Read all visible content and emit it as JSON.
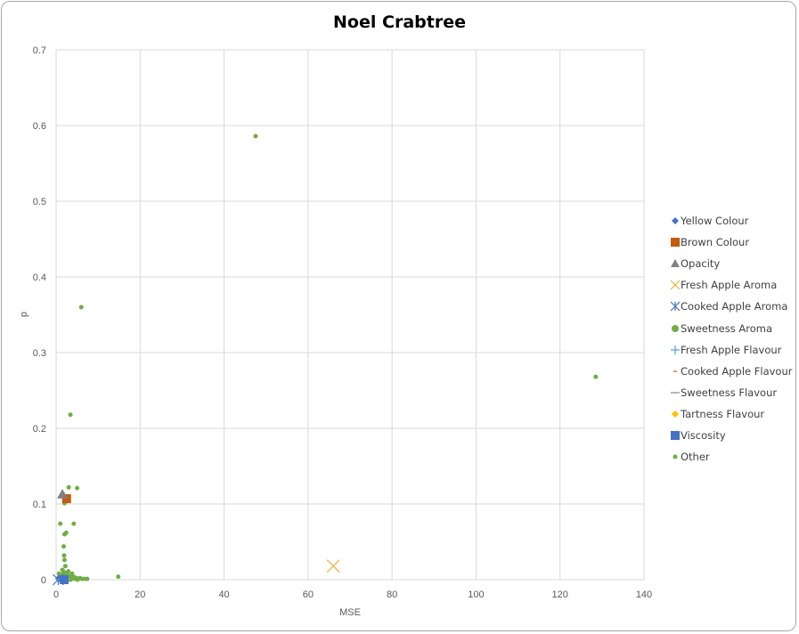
{
  "chart_data": {
    "type": "scatter",
    "title": "Noel Crabtree",
    "xlabel": "MSE",
    "ylabel": "p",
    "xlim": [
      0,
      140
    ],
    "ylim": [
      0,
      0.7
    ],
    "x_ticks": [
      "0",
      "20",
      "40",
      "60",
      "80",
      "100",
      "120",
      "140"
    ],
    "y_ticks": [
      "0",
      "0.1",
      "0.2",
      "0.3",
      "0.4",
      "0.5",
      "0.6",
      "0.7"
    ],
    "grid": true,
    "legend_position": "right",
    "series": [
      {
        "name": "Yellow Colour",
        "color": "#4472c4",
        "marker": "diamond",
        "points": [
          [
            0.6,
            0.001
          ]
        ]
      },
      {
        "name": "Brown Colour",
        "color": "#c55a11",
        "marker": "square",
        "points": [
          [
            2.5,
            0.107
          ]
        ]
      },
      {
        "name": "Opacity",
        "color": "#808080",
        "marker": "triangle",
        "points": [
          [
            1.5,
            0.113
          ]
        ]
      },
      {
        "name": "Fresh Apple Aroma",
        "color": "#e6b43c",
        "marker": "x",
        "points": [
          [
            66,
            0.018
          ]
        ]
      },
      {
        "name": "Cooked Apple Aroma",
        "color": "#4472c4",
        "marker": "asterisk",
        "points": [
          [
            0.5,
            0.0
          ]
        ]
      },
      {
        "name": "Sweetness Aroma",
        "color": "#70ad47",
        "marker": "circle",
        "points": [
          [
            1.8,
            0.001
          ]
        ]
      },
      {
        "name": "Fresh Apple Flavour",
        "color": "#5b9bd5",
        "marker": "plus",
        "points": [
          [
            1.2,
            0.0
          ]
        ]
      },
      {
        "name": "Cooked Apple Flavour",
        "color": "#ed7d31",
        "marker": "dash",
        "points": [
          [
            2.0,
            0.001
          ]
        ]
      },
      {
        "name": "Sweetness Flavour",
        "color": "#a5a5a5",
        "marker": "line",
        "points": [
          [
            2.3,
            0.001
          ]
        ]
      },
      {
        "name": "Tartness Flavour",
        "color": "#ffc000",
        "marker": "diamond",
        "points": [
          [
            1.6,
            0.001
          ]
        ]
      },
      {
        "name": "Viscosity",
        "color": "#4472c4",
        "marker": "square",
        "points": [
          [
            1.9,
            0.0
          ]
        ]
      },
      {
        "name": "Other",
        "color": "#70ad47",
        "marker": "dot",
        "points": [
          [
            47.5,
            0.586
          ],
          [
            128.5,
            0.268
          ],
          [
            6.0,
            0.36
          ],
          [
            3.4,
            0.218
          ],
          [
            3.0,
            0.122
          ],
          [
            5.0,
            0.121
          ],
          [
            2.0,
            0.101
          ],
          [
            1.0,
            0.074
          ],
          [
            4.2,
            0.074
          ],
          [
            2.4,
            0.062
          ],
          [
            2.0,
            0.06
          ],
          [
            1.8,
            0.044
          ],
          [
            1.9,
            0.032
          ],
          [
            2.0,
            0.026
          ],
          [
            2.2,
            0.018
          ],
          [
            1.5,
            0.013
          ],
          [
            1.8,
            0.01
          ],
          [
            14.8,
            0.004
          ],
          [
            0.5,
            0.002
          ],
          [
            0.9,
            0.003
          ],
          [
            1.2,
            0.002
          ],
          [
            1.6,
            0.006
          ],
          [
            2.1,
            0.004
          ],
          [
            2.6,
            0.007
          ],
          [
            3.0,
            0.003
          ],
          [
            3.3,
            0.005
          ],
          [
            3.7,
            0.002
          ],
          [
            4.1,
            0.004
          ],
          [
            4.5,
            0.001
          ],
          [
            4.9,
            0.002
          ],
          [
            5.3,
            0.001
          ],
          [
            5.7,
            0.002
          ],
          [
            6.2,
            0.001
          ],
          [
            6.8,
            0.001
          ],
          [
            7.4,
            0.001
          ],
          [
            2.8,
            0.001
          ],
          [
            3.5,
            0.0
          ],
          [
            1.4,
            0.0
          ],
          [
            2.3,
            0.009
          ],
          [
            2.9,
            0.011
          ],
          [
            3.8,
            0.008
          ],
          [
            1.1,
            0.006
          ],
          [
            0.7,
            0.008
          ],
          [
            4.4,
            0.003
          ],
          [
            2.5,
            0.002
          ],
          [
            3.1,
            0.0
          ],
          [
            1.7,
            0.002
          ],
          [
            5.1,
            0.0
          ]
        ]
      }
    ]
  }
}
